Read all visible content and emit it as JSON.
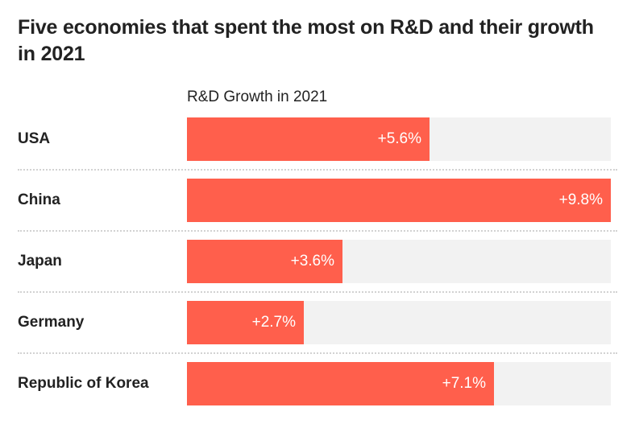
{
  "chart_data": {
    "type": "bar",
    "orientation": "horizontal",
    "title": "Five economies that spent the most on R&D and their growth in 2021",
    "column_header": "R&D Growth in 2021",
    "xlabel": "",
    "ylabel": "",
    "xlim": [
      0,
      9.8
    ],
    "unit": "%",
    "grid": false,
    "bar_color": "#ff5f4c",
    "track_color": "#f2f2f2",
    "categories": [
      "USA",
      "China",
      "Japan",
      "Germany",
      "Republic of Korea"
    ],
    "values": [
      5.6,
      9.8,
      3.6,
      2.7,
      7.1
    ],
    "labels": [
      "+5.6%",
      "+9.8%",
      "+3.6%",
      "+2.7%",
      "+7.1%"
    ]
  }
}
